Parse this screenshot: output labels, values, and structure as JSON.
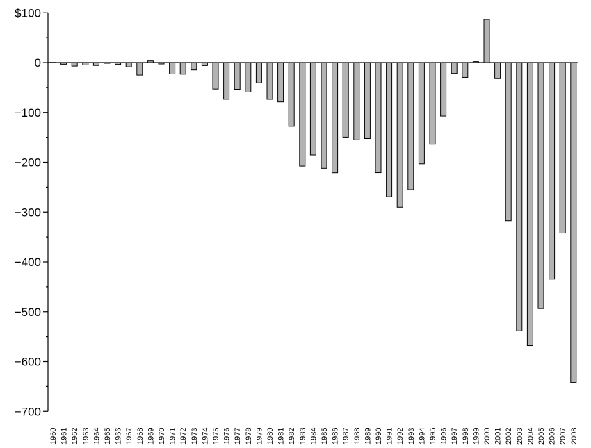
{
  "chart_data": {
    "type": "bar",
    "title": "",
    "xlabel": "",
    "ylabel": "",
    "ylim": [
      -700,
      100
    ],
    "y_ticks": [
      100,
      0,
      -100,
      -200,
      -300,
      -400,
      -500,
      -600,
      -700
    ],
    "y_tick_labels": [
      "$100",
      "0",
      "−100",
      "−200",
      "−300",
      "−400",
      "−500",
      "−600",
      "−700"
    ],
    "grid": false,
    "bar_color": "#b3b3b3",
    "categories": [
      "1960",
      "1961",
      "1962",
      "1963",
      "1964",
      "1965",
      "1966",
      "1967",
      "1968",
      "1969",
      "1970",
      "1971",
      "1972",
      "1973",
      "1974",
      "1975",
      "1976",
      "1977",
      "1978",
      "1979",
      "1980",
      "1981",
      "1982",
      "1983",
      "1984",
      "1985",
      "1986",
      "1987",
      "1988",
      "1989",
      "1990",
      "1991",
      "1992",
      "1993",
      "1994",
      "1995",
      "1996",
      "1997",
      "1998",
      "1999",
      "2000",
      "2001",
      "2002",
      "2003",
      "2004",
      "2005",
      "2006",
      "2007",
      "2008"
    ],
    "values": [
      0.3,
      -3.3,
      -7.1,
      -4.8,
      -5.9,
      -1.4,
      -3.7,
      -8.6,
      -25.2,
      3.2,
      -2.8,
      -23.0,
      -23.4,
      -14.9,
      -6.1,
      -53.2,
      -73.7,
      -53.7,
      -59.2,
      -40.7,
      -73.8,
      -79.0,
      -128.0,
      -207.8,
      -185.4,
      -212.3,
      -221.2,
      -149.7,
      -155.2,
      -152.6,
      -221.0,
      -269.2,
      -290.3,
      -255.1,
      -203.2,
      -164.0,
      -107.4,
      -21.9,
      -29.9,
      1.9,
      86.4,
      -32.4,
      -317.4,
      -538.4,
      -568.0,
      -493.6,
      -434.5,
      -342.2,
      -642.0
    ]
  }
}
